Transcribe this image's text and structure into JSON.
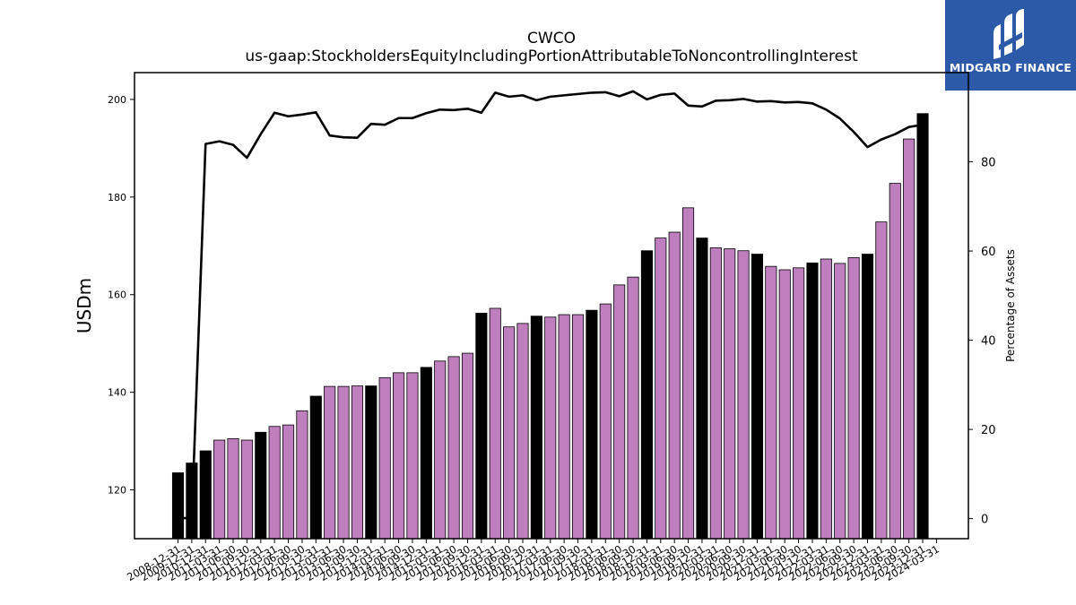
{
  "logo": {
    "text": "MIDGARD FINANCE",
    "bg_color": "#2c5aa8"
  },
  "chart_data": {
    "type": "bar",
    "title": "CWCO",
    "subtitle": "us-gaap:StockholdersEquityIncludingPortionAttributableToNoncontrollingInterest",
    "ylabel": "USDm",
    "y2label": "Percentage of Assets",
    "ylim": [
      110,
      205.5
    ],
    "yticks": [
      120,
      140,
      160,
      180,
      200
    ],
    "y2lim": [
      -4.5,
      100
    ],
    "y2ticks": [
      0,
      20,
      40,
      60,
      80
    ],
    "grid": false,
    "colors": {
      "bar_q4": "#000000",
      "bar_other": "#bf7fbf",
      "line": "#000000"
    },
    "categories": [
      "2008-12-31",
      "2009-12-31",
      "2010-12-31",
      "2011-03-31",
      "2011-06-30",
      "2011-09-30",
      "2011-12-31",
      "2012-03-31",
      "2012-06-30",
      "2012-09-30",
      "2012-12-31",
      "2013-03-31",
      "2013-06-30",
      "2013-09-30",
      "2013-12-31",
      "2014-03-31",
      "2014-06-30",
      "2014-09-30",
      "2014-12-31",
      "2015-03-31",
      "2015-06-30",
      "2015-09-30",
      "2015-12-31",
      "2016-03-31",
      "2016-06-30",
      "2016-09-30",
      "2016-12-31",
      "2017-03-31",
      "2017-06-30",
      "2017-09-30",
      "2017-12-31",
      "2018-03-31",
      "2018-06-30",
      "2018-09-30",
      "2018-12-31",
      "2019-03-31",
      "2019-06-30",
      "2019-09-30",
      "2019-12-31",
      "2020-03-31",
      "2020-06-30",
      "2020-09-30",
      "2020-12-31",
      "2021-03-31",
      "2021-06-30",
      "2021-09-30",
      "2021-12-31",
      "2022-03-31",
      "2022-06-30",
      "2022-09-30",
      "2022-12-31",
      "2023-03-31",
      "2023-06-30",
      "2023-09-30",
      "2023-12-31",
      "2024-03-31"
    ],
    "series": [
      {
        "type": "bar",
        "axis": "left",
        "values": [
          123.5,
          125.5,
          128.0,
          130.2,
          130.5,
          130.2,
          131.8,
          133.0,
          133.3,
          136.2,
          139.2,
          141.2,
          141.2,
          141.3,
          141.3,
          143.0,
          144.0,
          144.0,
          145.1,
          146.4,
          147.3,
          148.0,
          156.2,
          157.2,
          153.4,
          154.1,
          155.6,
          155.4,
          155.9,
          155.9,
          156.8,
          158.1,
          162.0,
          163.6,
          169.0,
          171.6,
          172.8,
          177.8,
          171.6,
          169.6,
          169.4,
          169.0,
          168.3,
          165.8,
          165.1,
          165.5,
          166.5,
          167.3,
          166.4,
          167.6,
          168.3,
          174.9,
          182.8,
          191.9,
          197.1,
          null
        ],
        "color_rule": "black for -12-31, purple otherwise"
      },
      {
        "type": "line",
        "axis": "right",
        "values": [
          0.1,
          0.1,
          84.0,
          84.6,
          83.8,
          80.9,
          86.2,
          91.0,
          90.2,
          90.6,
          91.1,
          85.9,
          85.5,
          85.4,
          88.5,
          88.3,
          89.8,
          89.8,
          90.9,
          91.7,
          91.6,
          91.9,
          91.0,
          95.5,
          94.6,
          94.9,
          93.8,
          94.6,
          94.9,
          95.2,
          95.5,
          95.6,
          94.7,
          95.8,
          94.0,
          95.0,
          95.3,
          92.6,
          92.4,
          93.7,
          93.8,
          94.1,
          93.5,
          93.6,
          93.3,
          93.4,
          93.1,
          91.7,
          89.7,
          86.7,
          83.3,
          85.0,
          86.2,
          87.8,
          88.3,
          null
        ]
      }
    ]
  }
}
